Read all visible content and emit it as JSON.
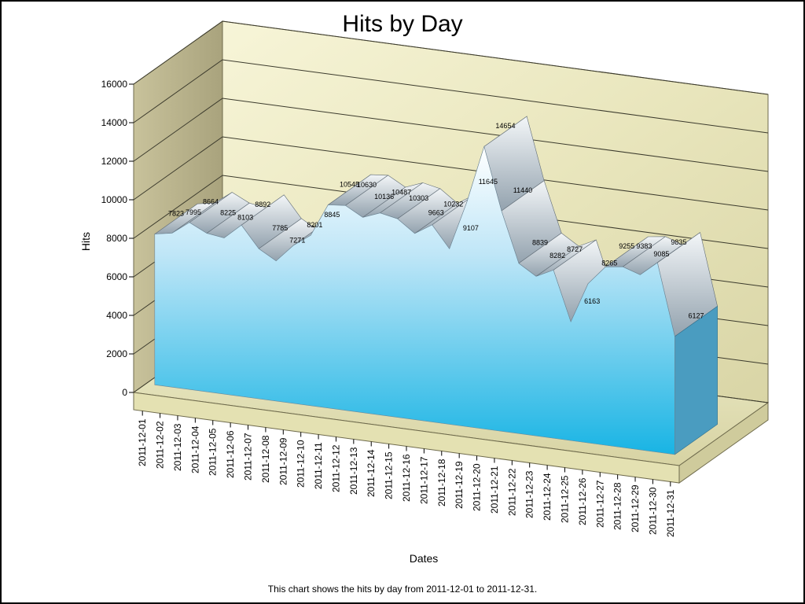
{
  "title": "Hits by Day",
  "footer": "This chart shows the hits by day from 2011-12-01 to 2011-12-31.",
  "colors": {
    "wall": "#e9e6bd",
    "side_wall": "#b7b18c",
    "floor": "#e6e3b7",
    "area_top": "#ffffff",
    "area_mid": "#aee2f7",
    "area_bottom": "#1bb7e6",
    "ridge": "#9aa7b3"
  },
  "chart_data": {
    "type": "area",
    "view": "3d",
    "title": "Hits by Day",
    "xlabel": "Dates",
    "ylabel": "Hits",
    "ylim": [
      0,
      16000
    ],
    "yticks": [
      0,
      2000,
      4000,
      6000,
      8000,
      10000,
      12000,
      14000,
      16000
    ],
    "grid": true,
    "x": [
      "2011-12-01",
      "2011-12-02",
      "2011-12-03",
      "2011-12-04",
      "2011-12-05",
      "2011-12-06",
      "2011-12-07",
      "2011-12-08",
      "2011-12-09",
      "2011-12-10",
      "2011-12-11",
      "2011-12-12",
      "2011-12-13",
      "2011-12-14",
      "2011-12-15",
      "2011-12-16",
      "2011-12-17",
      "2011-12-18",
      "2011-12-19",
      "2011-12-20",
      "2011-12-21",
      "2011-12-22",
      "2011-12-23",
      "2011-12-24",
      "2011-12-25",
      "2011-12-26",
      "2011-12-27",
      "2011-12-28",
      "2011-12-29",
      "2011-12-30",
      "2011-12-31"
    ],
    "x_tick_labels": [
      "2011-12-01",
      "2011-12-02",
      "2011-12-03",
      "2011-12-04",
      "2011-12-05",
      "2011-12-06",
      "2011-12-07",
      "2011-12-08",
      "2011-12-09",
      "2011-12-10",
      "2011-12-11",
      "2011-12-12",
      "2011-12-13",
      "2011-12-14",
      "2011-12-15",
      "2011-12-16",
      "2011-12-17",
      "2011-12-18",
      "2011-12-19",
      "2011-12-20",
      "2011-12-21",
      "2011-12-22",
      "2011-12-23",
      "2011-12-24",
      "2011-12-25",
      "2011-12-26",
      "2011-12-27",
      "2011-12-28",
      "2011-12-29",
      "2011-12-30",
      "2011-12-31"
    ],
    "series": [
      {
        "values": [
          7823,
          7995,
          8664,
          8225,
          8103,
          8892,
          7785,
          7271,
          8201,
          8845,
          10545,
          10630,
          10136,
          10487,
          10303,
          9663,
          10232,
          9107,
          11645,
          14654,
          11440,
          8839,
          8282,
          8727,
          6163,
          8265,
          9255,
          9383,
          9085,
          9835,
          6127
        ]
      }
    ]
  }
}
